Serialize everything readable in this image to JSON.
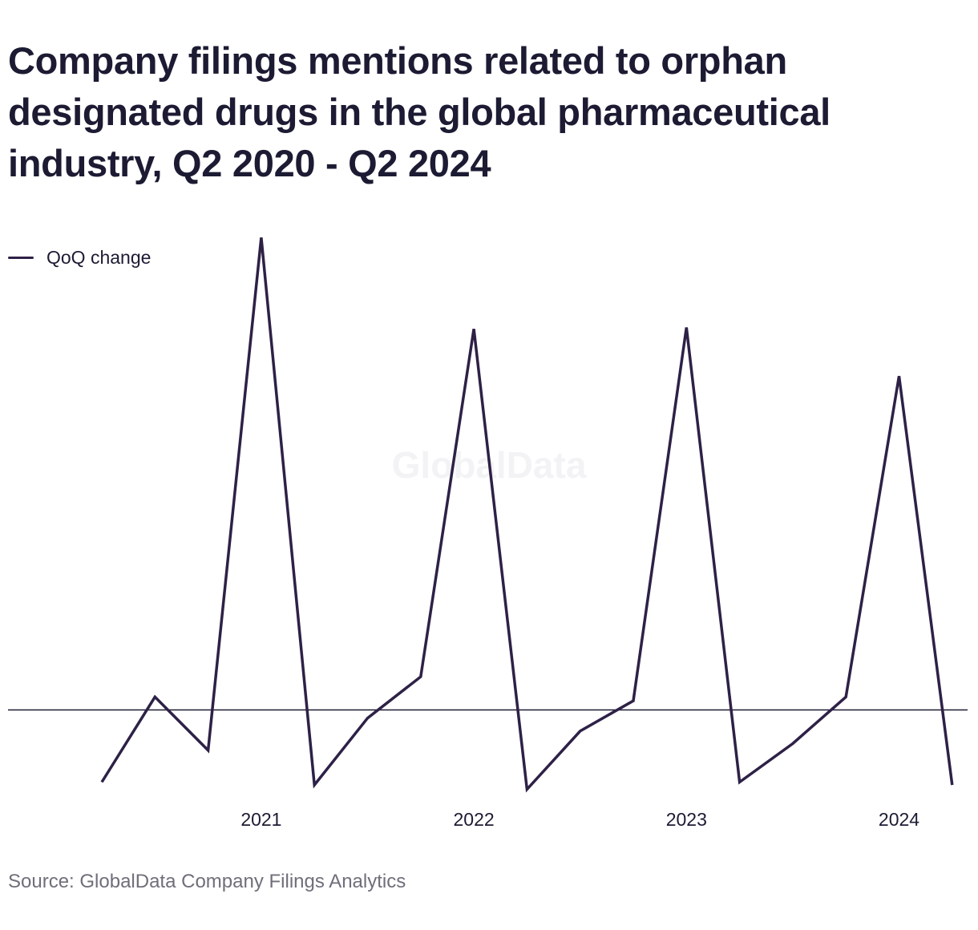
{
  "title": "Company filings mentions related to orphan designated drugs in the global pharmaceutical industry, Q2 2020 - Q2 2024",
  "legend": {
    "series_label": "QoQ change"
  },
  "watermark": "GlobalData",
  "source": "Source: GlobalData Company Filings Analytics",
  "colors": {
    "line": "#2e2146",
    "zero_line": "#1c1b33",
    "title": "#1c1b33",
    "source": "#6f6f7a"
  },
  "chart_data": {
    "type": "line",
    "title": "Company filings mentions related to orphan designated drugs in the global pharmaceutical industry, Q2 2020 - Q2 2024",
    "xlabel": "",
    "ylabel": "",
    "x": [
      "Q2 2020",
      "Q3 2020",
      "Q4 2020",
      "Q1 2021",
      "Q2 2021",
      "Q3 2021",
      "Q4 2021",
      "Q1 2022",
      "Q2 2022",
      "Q3 2022",
      "Q4 2022",
      "Q1 2023",
      "Q2 2023",
      "Q3 2023",
      "Q4 2023",
      "Q1 2024",
      "Q2 2024"
    ],
    "x_tick_labels": [
      {
        "label": "2021",
        "at": "Q1 2021"
      },
      {
        "label": "2022",
        "at": "Q1 2022"
      },
      {
        "label": "2023",
        "at": "Q1 2023"
      },
      {
        "label": "2024",
        "at": "Q1 2024"
      }
    ],
    "series": [
      {
        "name": "QoQ change",
        "values": [
          -15,
          2.7,
          -8.4,
          98.2,
          -15.6,
          -1.7,
          6.9,
          79.2,
          -16.5,
          -4.4,
          1.9,
          79.5,
          -15,
          -7,
          2.7,
          69.4,
          -15.6
        ]
      }
    ],
    "ylim": [
      -20,
      100
    ],
    "y_axis_visible": false,
    "zero_line": true,
    "grid": false,
    "legend_position": "top-left"
  }
}
